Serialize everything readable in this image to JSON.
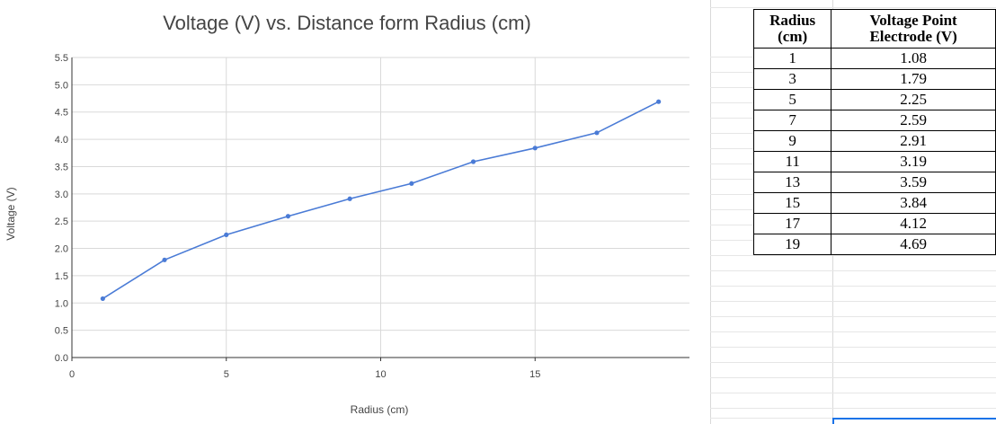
{
  "chart_data": {
    "type": "line",
    "title": "Voltage (V) vs. Distance form Radius (cm)",
    "xlabel": "Radius (cm)",
    "ylabel": "Voltage (V)",
    "xlim": [
      0,
      20
    ],
    "ylim": [
      0,
      5.5
    ],
    "x_ticks": [
      "0",
      "5",
      "10",
      "15"
    ],
    "x_tick_values": [
      0,
      5,
      10,
      15
    ],
    "y_ticks": [
      "0.0",
      "0.5",
      "1.0",
      "1.5",
      "2.0",
      "2.5",
      "3.0",
      "3.5",
      "4.0",
      "4.5",
      "5.0",
      "5.5"
    ],
    "y_tick_values": [
      0,
      0.5,
      1,
      1.5,
      2,
      2.5,
      3,
      3.5,
      4,
      4.5,
      5,
      5.5
    ],
    "grid": true,
    "x": [
      1,
      3,
      5,
      7,
      9,
      11,
      13,
      15,
      17,
      19
    ],
    "series": [
      {
        "values": [
          1.08,
          1.79,
          2.25,
          2.59,
          2.91,
          3.19,
          3.59,
          3.84,
          4.12,
          4.69
        ],
        "color": "#4a7bd6"
      }
    ],
    "colors": {
      "line": "#4a7bd6",
      "grid": "#d9d9d9",
      "axis": "#333333",
      "text": "#444444"
    }
  },
  "table": {
    "headers": [
      [
        "Radius",
        "(cm)"
      ],
      [
        "Voltage Point",
        "Electrode (V)"
      ]
    ],
    "rows": [
      [
        "1",
        "1.08"
      ],
      [
        "3",
        "1.79"
      ],
      [
        "5",
        "2.25"
      ],
      [
        "7",
        "2.59"
      ],
      [
        "9",
        "2.91"
      ],
      [
        "11",
        "3.19"
      ],
      [
        "13",
        "3.59"
      ],
      [
        "15",
        "3.84"
      ],
      [
        "17",
        "4.12"
      ],
      [
        "19",
        "4.69"
      ]
    ]
  }
}
